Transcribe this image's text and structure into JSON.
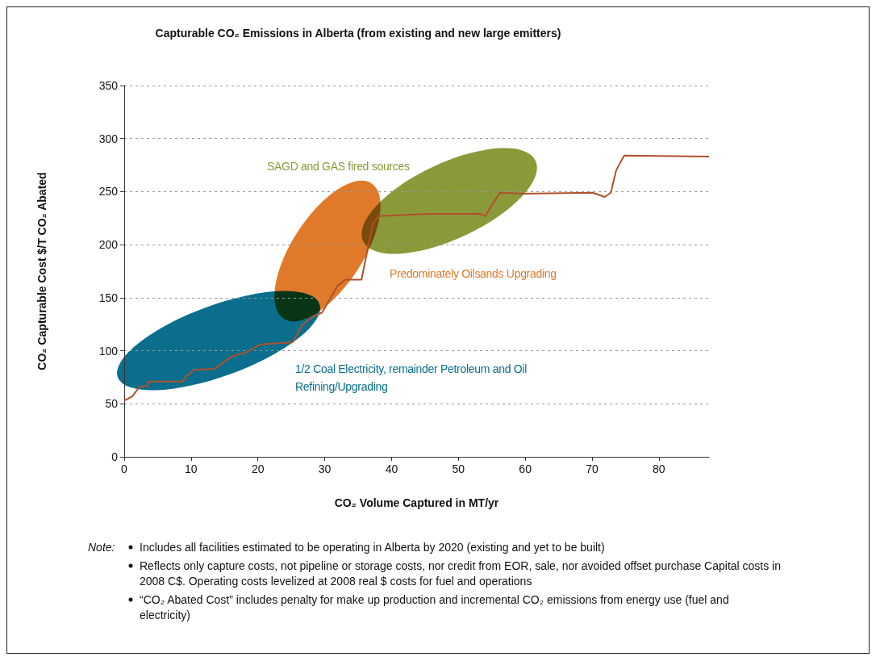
{
  "chart_data": {
    "type": "line",
    "title": "Capturable CO₂ Emissions in Alberta (from existing and new large emitters)",
    "xlabel": "CO₂ Volume Captured in MT/yr",
    "ylabel": "CO₂ Capturable Cost $/T CO₂ Abated",
    "series": [
      {
        "color": "#b0502c",
        "x": [
          0,
          1.2,
          2.3,
          3.5,
          3.7,
          8.7,
          9.3,
          10.5,
          13.5,
          16.2,
          18.1,
          20.4,
          25.2,
          26.6,
          28.2,
          29.6,
          31.9,
          33.1,
          35.5,
          37.2,
          38.1,
          45.6,
          53.2,
          54,
          56.2,
          59.7,
          70.1,
          71.9,
          72.8,
          73.6,
          74.8,
          87.5
        ],
        "values": [
          53,
          57,
          66,
          67,
          71,
          71,
          76,
          82,
          83,
          95,
          98,
          106,
          108,
          124,
          132,
          136,
          161,
          167,
          167,
          220,
          227,
          229,
          229,
          227,
          249,
          248,
          249,
          245,
          249,
          270,
          284,
          283
        ]
      }
    ],
    "xlim": [
      0,
      87.5
    ],
    "xticks": [
      0,
      10,
      20,
      30,
      40,
      50,
      60,
      70,
      80
    ],
    "ylim": [
      0,
      350
    ],
    "yticks": [
      0,
      50,
      100,
      150,
      200,
      250,
      300,
      350
    ],
    "grid": "y",
    "marker": "none",
    "line_style": "solid",
    "annotations": [
      "SAGD and GAS fired sources",
      "Predominately Oilsands Upgrading",
      "1/2 Coal Electricity, remainder Petroleum and Oil Refining/Upgrading",
      "Note:",
      "Includes all facilities estimated to be operating in Alberta by 2020 (existing and yet to be built)",
      "Reflects only capture costs, not pipeline or storage costs, nor credit from EOR, sale, nor avoided offset purchase Capital costs in 2008 C$. Operating costs levelized at 2008 real $ costs for fuel and operations",
      "“CO₂ Abated Cost” includes penalty for make up production and incremental CO₂ emissions from energy use (fuel and electricity)"
    ]
  }
}
